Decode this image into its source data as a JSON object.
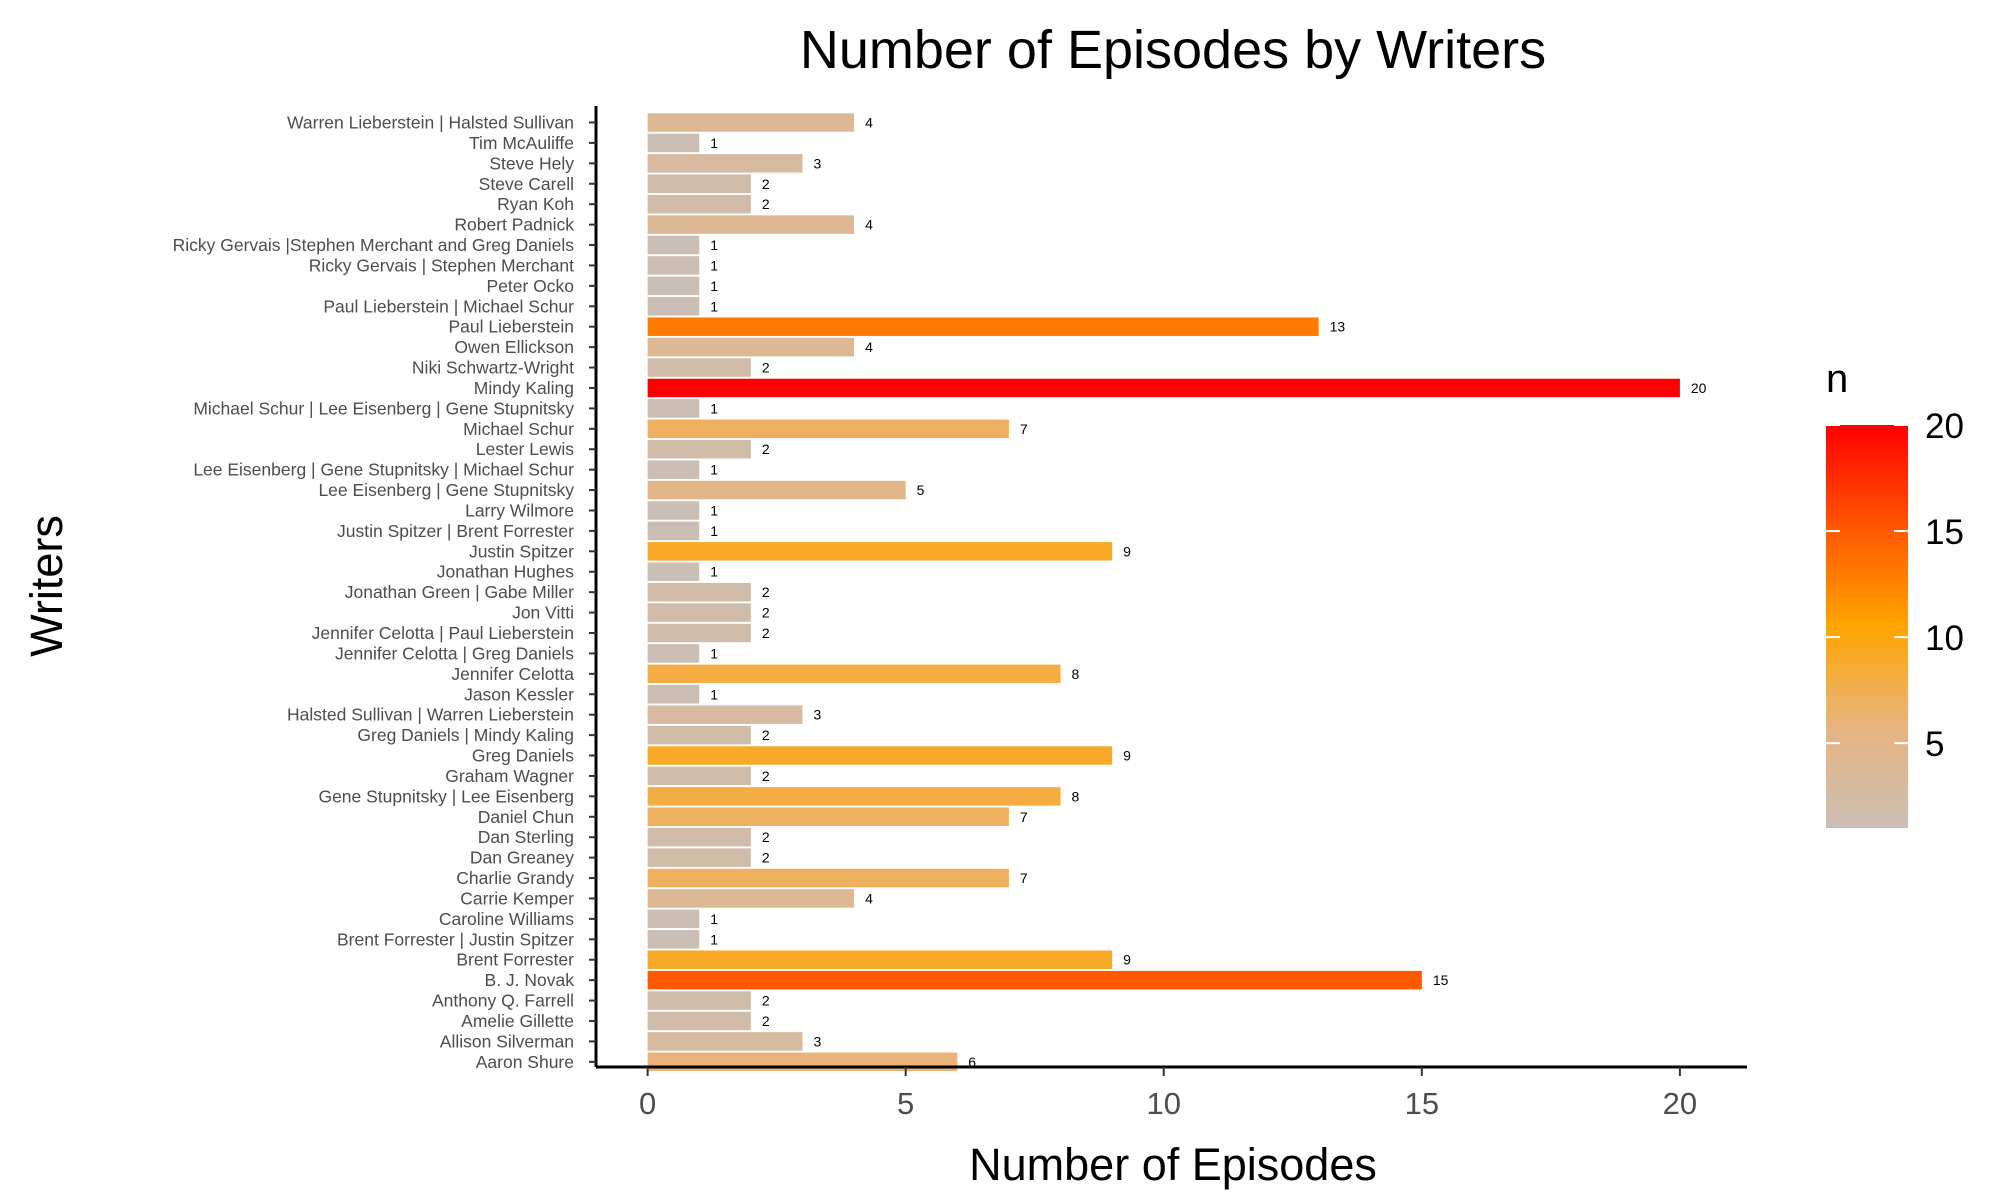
{
  "chart_data": {
    "type": "bar",
    "orientation": "horizontal",
    "title": "Number of Episodes by Writers",
    "xlabel": "Number of Episodes",
    "ylabel": "Writers",
    "xlim": [
      -1.0,
      21.3
    ],
    "xticks": [
      0,
      5,
      10,
      15,
      20
    ],
    "grid": false,
    "categories": [
      "Warren Lieberstein | Halsted Sullivan",
      "Tim McAuliffe",
      "Steve Hely",
      "Steve Carell",
      "Ryan Koh",
      "Robert Padnick",
      "Ricky Gervais |Stephen Merchant and Greg Daniels",
      "Ricky Gervais | Stephen Merchant",
      "Peter Ocko",
      "Paul Lieberstein | Michael Schur",
      "Paul Lieberstein",
      "Owen Ellickson",
      "Niki Schwartz-Wright",
      "Mindy Kaling",
      "Michael Schur | Lee Eisenberg | Gene Stupnitsky",
      "Michael Schur",
      "Lester Lewis",
      "Lee Eisenberg | Gene Stupnitsky | Michael Schur",
      "Lee Eisenberg | Gene Stupnitsky",
      "Larry Wilmore",
      "Justin Spitzer | Brent Forrester",
      "Justin Spitzer",
      "Jonathan Hughes",
      "Jonathan Green | Gabe Miller",
      "Jon Vitti",
      "Jennifer Celotta | Paul Lieberstein",
      "Jennifer Celotta | Greg Daniels",
      "Jennifer Celotta",
      "Jason Kessler",
      "Halsted Sullivan | Warren Lieberstein",
      "Greg Daniels | Mindy Kaling",
      "Greg Daniels",
      "Graham Wagner",
      "Gene Stupnitsky | Lee Eisenberg",
      "Daniel Chun",
      "Dan Sterling",
      "Dan Greaney",
      "Charlie Grandy",
      "Carrie Kemper",
      "Caroline Williams",
      "Brent Forrester | Justin Spitzer",
      "Brent Forrester",
      "B. J. Novak",
      "Anthony Q. Farrell",
      "Amelie Gillette",
      "Allison Silverman",
      "Aaron Shure"
    ],
    "values": [
      4,
      1,
      3,
      2,
      2,
      4,
      1,
      1,
      1,
      1,
      13,
      4,
      2,
      20,
      1,
      7,
      2,
      1,
      5,
      1,
      1,
      9,
      1,
      2,
      2,
      2,
      1,
      8,
      1,
      3,
      2,
      9,
      2,
      8,
      7,
      2,
      2,
      7,
      4,
      1,
      1,
      9,
      15,
      2,
      2,
      3,
      6
    ],
    "legend": {
      "title": "n",
      "position": "right",
      "range": [
        1,
        20
      ],
      "ticks": [
        5,
        10,
        15,
        20
      ],
      "colors": [
        "#cbbeb5",
        "#e8b480",
        "#ffa500",
        "#ff5500",
        "#ff0000"
      ]
    }
  }
}
